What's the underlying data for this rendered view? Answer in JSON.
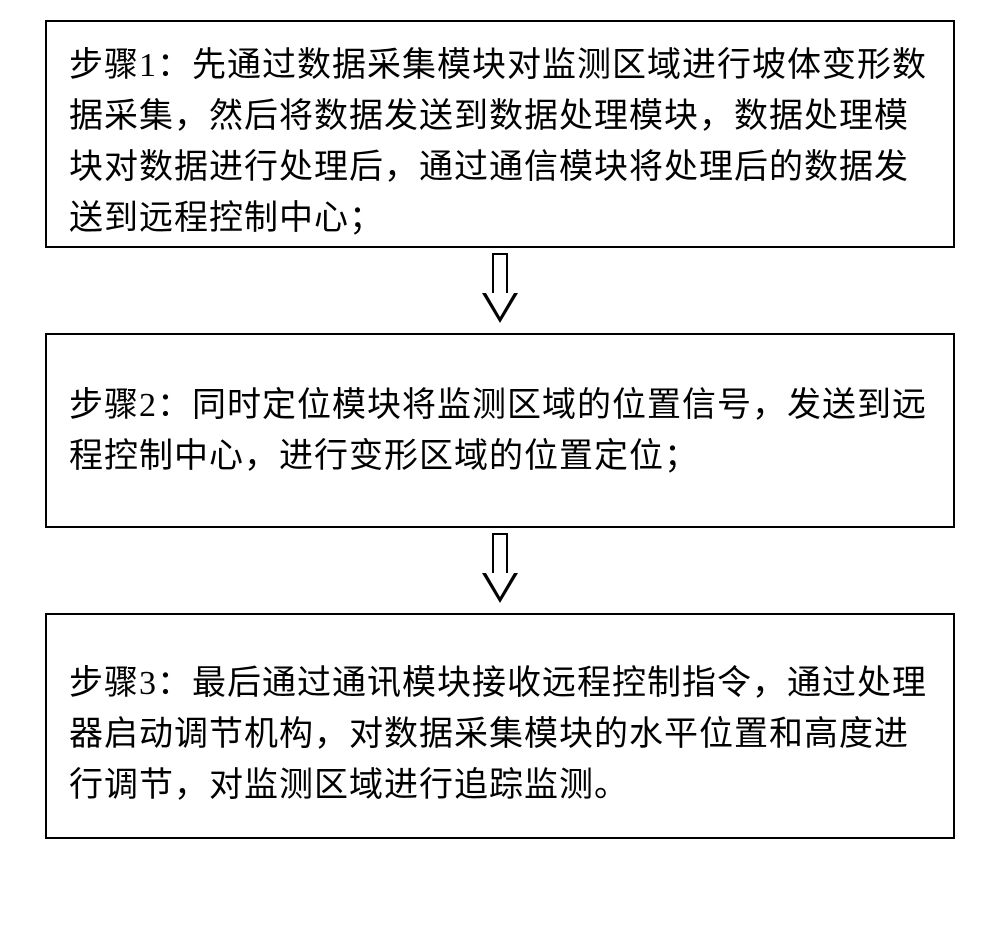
{
  "flowchart": {
    "type": "flowchart",
    "direction": "vertical",
    "background_color": "#ffffff",
    "box_border_color": "#000000",
    "box_border_width": 2,
    "text_color": "#000000",
    "font_family": "SimSun",
    "font_size_pt": 25,
    "line_height": 1.5,
    "arrow_style": "hollow-block",
    "arrow_color": "#000000",
    "arrow_fill": "#ffffff",
    "steps": [
      {
        "id": "step1",
        "text": "步骤1：先通过数据采集模块对监测区域进行坡体变形数据采集，然后将数据发送到数据处理模块，数据处理模块对数据进行处理后，通过通信模块将处理后的数据发送到远程控制中心；"
      },
      {
        "id": "step2",
        "text": "步骤2：同时定位模块将监测区域的位置信号，发送到远程控制中心，进行变形区域的位置定位；"
      },
      {
        "id": "step3",
        "text": "步骤3：最后通过通讯模块接收远程控制指令，通过处理器启动调节机构，对数据采集模块的水平位置和高度进行调节，对监测区域进行追踪监测。"
      }
    ],
    "edges": [
      {
        "from": "step1",
        "to": "step2"
      },
      {
        "from": "step2",
        "to": "step3"
      }
    ]
  }
}
